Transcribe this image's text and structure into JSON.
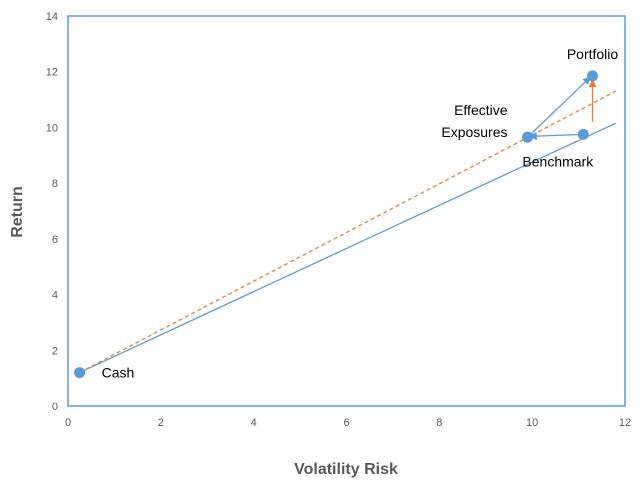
{
  "chart_data": {
    "type": "scatter",
    "title": "",
    "xlabel": "Volatility Risk",
    "ylabel": "Return",
    "xlim": [
      0,
      12
    ],
    "ylim": [
      0,
      14
    ],
    "x_ticks": [
      "0",
      "2",
      "4",
      "6",
      "8",
      "10",
      "12"
    ],
    "y_ticks": [
      "0",
      "2",
      "4",
      "6",
      "8",
      "10",
      "12",
      "14"
    ],
    "grid": false,
    "points": [
      {
        "label": "Cash",
        "x": 0.25,
        "y": 1.2
      },
      {
        "label": "Effective\nExposures",
        "x": 9.9,
        "y": 9.65
      },
      {
        "label": "Benchmark",
        "x": 11.1,
        "y": 9.75
      },
      {
        "label": "Portfolio",
        "x": 11.3,
        "y": 11.85
      }
    ],
    "lines": [
      {
        "style": "solid",
        "color": "#5b9bd5",
        "from": [
          0.25,
          1.2
        ],
        "to": [
          11.8,
          10.15
        ]
      },
      {
        "style": "dashed",
        "color": "#ed7d31",
        "from": [
          0.25,
          1.2
        ],
        "to": [
          11.8,
          11.3
        ]
      }
    ],
    "arrows": [
      {
        "color": "#5b9bd5",
        "from": [
          11.1,
          9.75
        ],
        "to": [
          9.95,
          9.68
        ]
      },
      {
        "color": "#5b9bd5",
        "from": [
          9.9,
          9.65
        ],
        "to": [
          11.25,
          11.8
        ]
      },
      {
        "color": "#ed7d31",
        "from": [
          11.3,
          10.2
        ],
        "to": [
          11.3,
          11.7
        ]
      }
    ],
    "colors": {
      "marker": "#5b9bd5",
      "border": "#5b9bd5",
      "dashed": "#ed7d31"
    }
  }
}
